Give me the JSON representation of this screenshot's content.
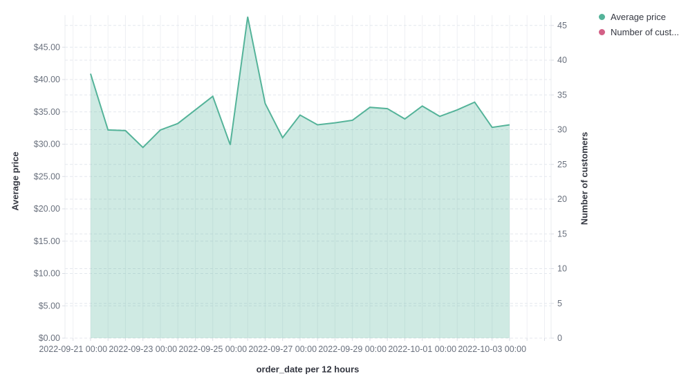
{
  "legend": {
    "items": [
      {
        "label": "Average price",
        "color": "#54b399"
      },
      {
        "label": "Number of cust...",
        "color": "#d36086"
      }
    ]
  },
  "chart_data": {
    "type": "area",
    "title": "",
    "xlabel": "order_date per 12 hours",
    "left_axis": {
      "title": "Average price",
      "tick_labels": [
        "$0.00",
        "$5.00",
        "$10.00",
        "$15.00",
        "$20.00",
        "$25.00",
        "$30.00",
        "$35.00",
        "$40.00",
        "$45.00"
      ],
      "tick_values": [
        0,
        5,
        10,
        15,
        20,
        25,
        30,
        35,
        40,
        45
      ],
      "range": [
        0,
        50
      ]
    },
    "right_axis": {
      "title": "Number of customers",
      "tick_labels": [
        "0",
        "5",
        "10",
        "15",
        "20",
        "25",
        "30",
        "35",
        "40",
        "45"
      ],
      "tick_values": [
        0,
        5,
        10,
        15,
        20,
        25,
        30,
        35,
        40,
        45
      ],
      "range": [
        0,
        46.5
      ]
    },
    "x_tick_labels": [
      "2022-09-21 00:00",
      "2022-09-23 00:00",
      "2022-09-25 00:00",
      "2022-09-27 00:00",
      "2022-09-29 00:00",
      "2022-10-01 00:00",
      "2022-10-03 00:00"
    ],
    "x": [
      "2022-09-21 12:00",
      "2022-09-22 00:00",
      "2022-09-22 12:00",
      "2022-09-23 00:00",
      "2022-09-23 12:00",
      "2022-09-24 00:00",
      "2022-09-24 12:00",
      "2022-09-25 00:00",
      "2022-09-25 12:00",
      "2022-09-26 00:00",
      "2022-09-26 12:00",
      "2022-09-27 00:00",
      "2022-09-27 12:00",
      "2022-09-28 00:00",
      "2022-09-28 12:00",
      "2022-09-29 00:00",
      "2022-09-29 12:00",
      "2022-09-30 00:00",
      "2022-09-30 12:00",
      "2022-10-01 00:00",
      "2022-10-01 12:00",
      "2022-10-02 00:00",
      "2022-10-02 12:00",
      "2022-10-03 00:00",
      "2022-10-03 12:00"
    ],
    "series": [
      {
        "name": "Average price",
        "axis": "left",
        "color": "#54b399",
        "fill_opacity": 0.28,
        "values": [
          40.9,
          32.2,
          32.1,
          29.5,
          32.2,
          33.2,
          35.3,
          37.4,
          29.9,
          49.7,
          36.3,
          31.0,
          34.5,
          33.0,
          33.3,
          33.7,
          35.7,
          35.5,
          33.9,
          35.9,
          34.3,
          35.3,
          36.5,
          32.6,
          33.0
        ]
      },
      {
        "name": "Number of customers",
        "axis": "right",
        "color": "#d36086",
        "values": []
      }
    ],
    "grid": {
      "vertical": "every 12 hours, solid",
      "horizontal": "left and right axis ticks, dashed",
      "legend_position": "top-right"
    },
    "colors": {
      "grid_solid": "#eef0f3",
      "grid_dashed": "#e4e7ed",
      "axis_line": "#e9ebef",
      "tick": "#d8dce3",
      "tick_text": "#69707d",
      "title_text": "#343741"
    }
  }
}
